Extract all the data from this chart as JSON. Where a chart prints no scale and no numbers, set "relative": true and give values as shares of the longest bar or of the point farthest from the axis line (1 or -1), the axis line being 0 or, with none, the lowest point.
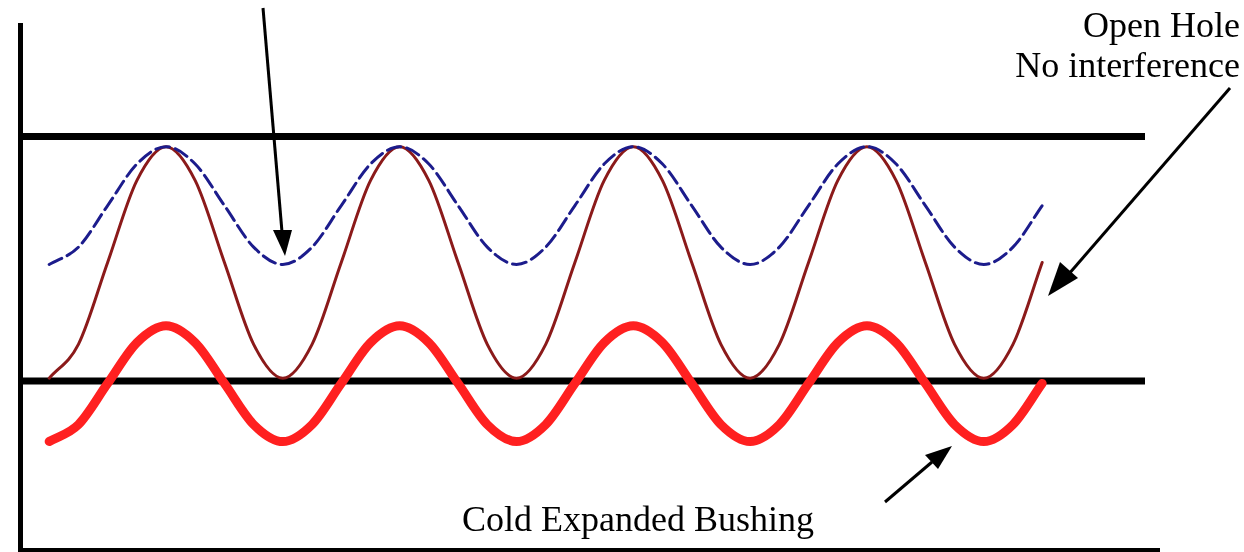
{
  "chart_data": {
    "type": "line",
    "relative": true,
    "legend": false,
    "grid": false,
    "categories": [
      null,
      null,
      null,
      null,
      null,
      null,
      null,
      null,
      null,
      null,
      null,
      null,
      null,
      null,
      null,
      null,
      null,
      null,
      null,
      null,
      null,
      null,
      null,
      null,
      null,
      null,
      null,
      null,
      null,
      null,
      null,
      null,
      null,
      null,
      null,
      null,
      null,
      null,
      null,
      null
    ],
    "series": [
      {
        "color": "#1c1c8c",
        "line_style": "dashed",
        "values": [
          null,
          0.708,
          0.751,
          0.854,
          0.957,
          1,
          0.957,
          0.854,
          0.751,
          0.708,
          0.751,
          0.854,
          0.957,
          1,
          0.957,
          0.854,
          0.751,
          0.708,
          0.751,
          0.854,
          0.957,
          1,
          0.957,
          0.854,
          0.751,
          0.708,
          0.751,
          0.854,
          0.957,
          1,
          0.957,
          0.854,
          0.751,
          0.708,
          0.751,
          0.854,
          null,
          null,
          null,
          null
        ]
      },
      {
        "color": "#8b1a1a",
        "line_style": "solid",
        "values": [
          null,
          0.426,
          0.51,
          0.713,
          0.916,
          1,
          0.916,
          0.713,
          0.51,
          0.426,
          0.51,
          0.713,
          0.916,
          1,
          0.916,
          0.713,
          0.51,
          0.426,
          0.51,
          0.713,
          0.916,
          1,
          0.916,
          0.713,
          0.51,
          0.426,
          0.51,
          0.713,
          0.916,
          1,
          0.916,
          0.713,
          0.51,
          0.426,
          0.51,
          0.713,
          null,
          null,
          null,
          null
        ]
      },
      {
        "color": "#ff2020",
        "line_style": "solid",
        "values": [
          null,
          0.269,
          0.311,
          0.413,
          0.514,
          0.556,
          0.514,
          0.413,
          0.311,
          0.269,
          0.311,
          0.413,
          0.514,
          0.556,
          0.514,
          0.413,
          0.311,
          0.269,
          0.311,
          0.413,
          0.514,
          0.556,
          0.514,
          0.413,
          0.311,
          0.269,
          0.311,
          0.413,
          0.514,
          0.556,
          0.514,
          0.413,
          0.311,
          0.269,
          0.311,
          0.413,
          null,
          null,
          null,
          null
        ]
      }
    ],
    "ref_lines": [
      {
        "axis": "y",
        "value": 1.025,
        "color": "#000000"
      },
      {
        "axis": "y",
        "value": 0.419,
        "color": "#000000"
      }
    ],
    "annotations": [
      "Open Hole\nNo interference",
      "Cold Expanded Bushing"
    ]
  }
}
